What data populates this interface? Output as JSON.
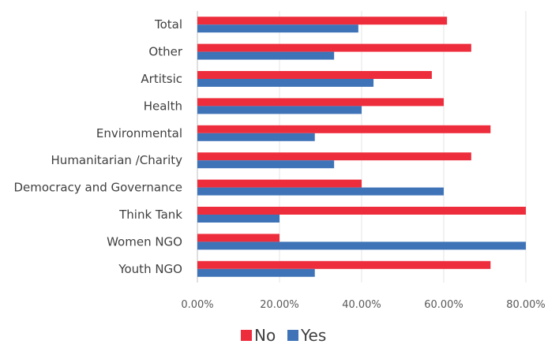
{
  "chart_data": {
    "type": "bar",
    "orientation": "horizontal",
    "categories": [
      "Total",
      "Other",
      "Artitsic",
      "Health",
      "Environmental",
      "Humanitarian /Charity",
      "Democracy and Governance",
      "Think Tank",
      "Women NGO",
      "Youth NGO"
    ],
    "series": [
      {
        "name": "No",
        "color": "#ee2d3c",
        "values": [
          60.8,
          66.7,
          57.1,
          60.0,
          71.4,
          66.7,
          40.0,
          80.0,
          20.0,
          71.4
        ]
      },
      {
        "name": "Yes",
        "color": "#3f73b8",
        "values": [
          39.2,
          33.3,
          42.9,
          40.0,
          28.6,
          33.3,
          60.0,
          20.0,
          80.0,
          28.6
        ]
      }
    ],
    "x_ticks": [
      "0.00%",
      "20.00%",
      "40.00%",
      "60.00%",
      "80.00%"
    ],
    "xlim": [
      0,
      80
    ],
    "grid": true,
    "legend_position": "bottom",
    "title": "",
    "xlabel": "",
    "ylabel": ""
  }
}
